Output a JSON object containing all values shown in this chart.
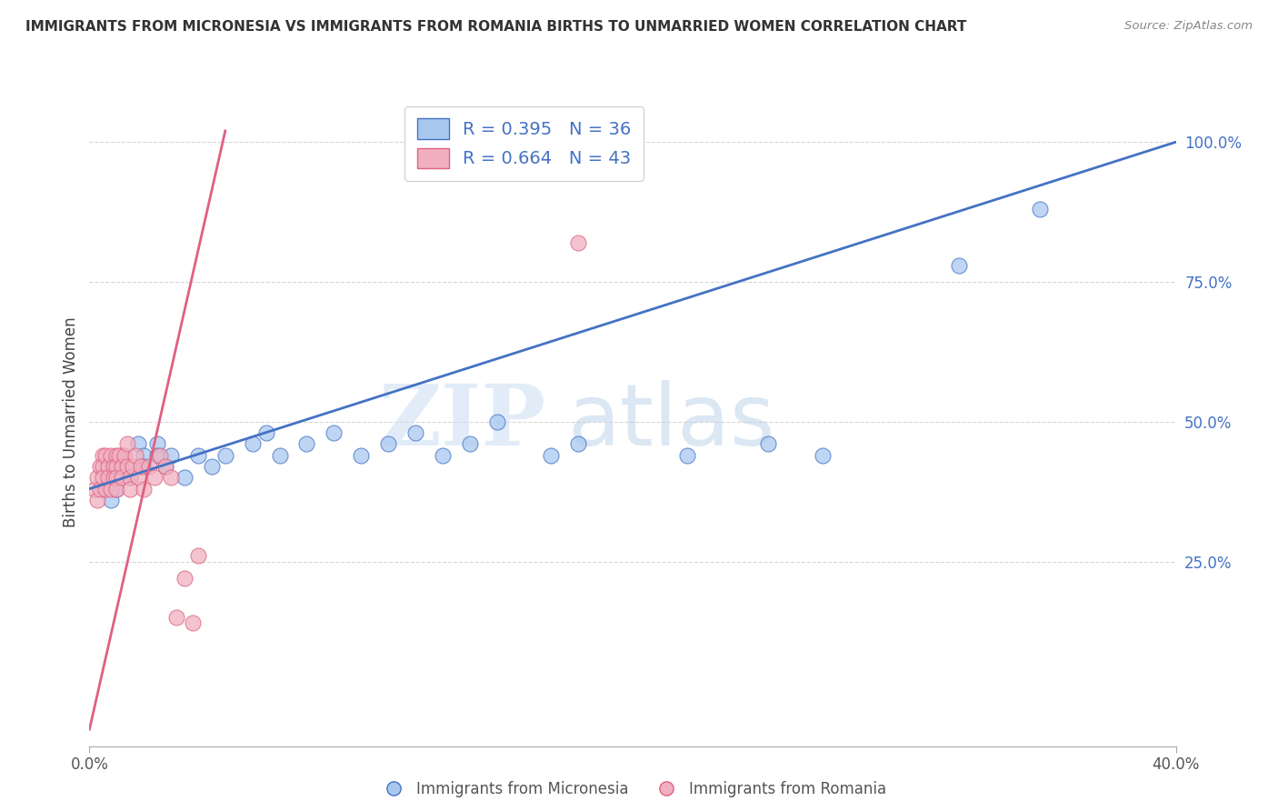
{
  "title": "IMMIGRANTS FROM MICRONESIA VS IMMIGRANTS FROM ROMANIA BIRTHS TO UNMARRIED WOMEN CORRELATION CHART",
  "source": "Source: ZipAtlas.com",
  "ylabel": "Births to Unmarried Women",
  "legend_label1": "R = 0.395   N = 36",
  "legend_label2": "R = 0.664   N = 43",
  "legend_footer1": "Immigrants from Micronesia",
  "legend_footer2": "Immigrants from Romania",
  "color_blue": "#a8c8f0",
  "color_pink": "#f0b0c0",
  "line_color_blue": "#4472c4",
  "line_color_pink": "#e06080",
  "watermark_zip": "ZIP",
  "watermark_atlas": "atlas",
  "xmin": 0.0,
  "xmax": 0.4,
  "ymin": -0.08,
  "ymax": 1.08,
  "micronesia_x": [
    0.005,
    0.007,
    0.008,
    0.01,
    0.01,
    0.012,
    0.015,
    0.018,
    0.02,
    0.02,
    0.025,
    0.025,
    0.028,
    0.03,
    0.035,
    0.04,
    0.045,
    0.05,
    0.06,
    0.065,
    0.07,
    0.08,
    0.09,
    0.1,
    0.11,
    0.12,
    0.13,
    0.14,
    0.15,
    0.17,
    0.18,
    0.22,
    0.25,
    0.27,
    0.32,
    0.35
  ],
  "micronesia_y": [
    0.38,
    0.4,
    0.36,
    0.42,
    0.38,
    0.44,
    0.4,
    0.46,
    0.44,
    0.42,
    0.46,
    0.44,
    0.42,
    0.44,
    0.4,
    0.44,
    0.42,
    0.44,
    0.46,
    0.48,
    0.44,
    0.46,
    0.48,
    0.44,
    0.46,
    0.48,
    0.44,
    0.46,
    0.5,
    0.44,
    0.46,
    0.44,
    0.46,
    0.44,
    0.78,
    0.88
  ],
  "romania_x": [
    0.002,
    0.003,
    0.003,
    0.004,
    0.004,
    0.005,
    0.005,
    0.005,
    0.006,
    0.006,
    0.007,
    0.007,
    0.008,
    0.008,
    0.009,
    0.009,
    0.01,
    0.01,
    0.01,
    0.01,
    0.011,
    0.012,
    0.012,
    0.013,
    0.014,
    0.014,
    0.015,
    0.015,
    0.016,
    0.017,
    0.018,
    0.019,
    0.02,
    0.022,
    0.024,
    0.026,
    0.028,
    0.03,
    0.032,
    0.035,
    0.038,
    0.04,
    0.18
  ],
  "romania_y": [
    0.38,
    0.4,
    0.36,
    0.42,
    0.38,
    0.44,
    0.42,
    0.4,
    0.44,
    0.38,
    0.42,
    0.4,
    0.44,
    0.38,
    0.42,
    0.4,
    0.44,
    0.42,
    0.4,
    0.38,
    0.44,
    0.42,
    0.4,
    0.44,
    0.46,
    0.42,
    0.4,
    0.38,
    0.42,
    0.44,
    0.4,
    0.42,
    0.38,
    0.42,
    0.4,
    0.44,
    0.42,
    0.4,
    0.15,
    0.22,
    0.14,
    0.26,
    0.82
  ],
  "blue_line_x0": 0.0,
  "blue_line_y0": 0.38,
  "blue_line_x1": 0.4,
  "blue_line_y1": 1.0,
  "pink_line_x0": 0.0,
  "pink_line_y0": -0.05,
  "pink_line_x1": 0.05,
  "pink_line_y1": 1.02
}
